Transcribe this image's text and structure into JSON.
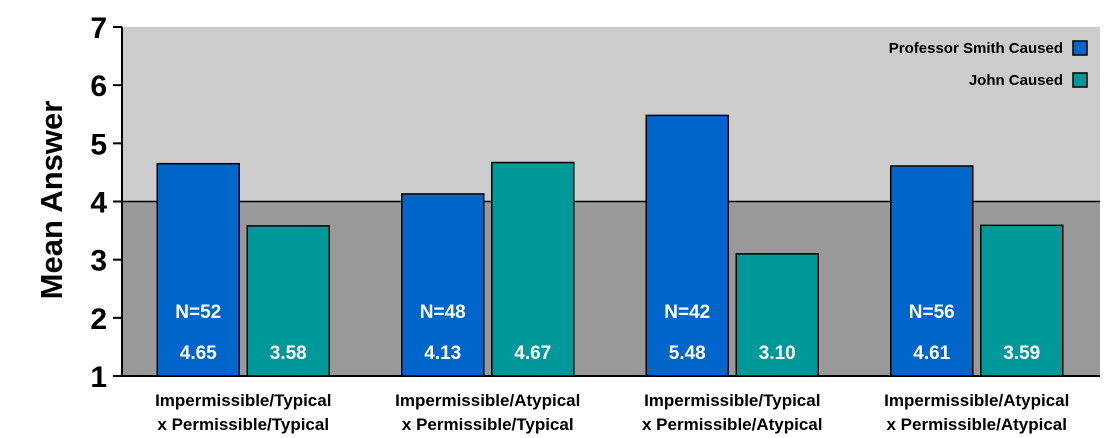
{
  "chart_data": {
    "type": "bar",
    "title": "",
    "xlabel": "",
    "ylabel": "Mean Answer",
    "ylim": [
      1,
      7
    ],
    "yticks": [
      1,
      2,
      3,
      4,
      5,
      6,
      7
    ],
    "grid": false,
    "legend_position": "top-right",
    "background": {
      "upper_color": "#cccccc",
      "lower_color": "#999999",
      "split_value": 4
    },
    "categories": [
      [
        "Impermissible/Typical",
        "x Permissible/Typical"
      ],
      [
        "Impermissible/Atypical",
        "x Permissible/Typical"
      ],
      [
        "Impermissible/Typical",
        "x Permissible/Atypical"
      ],
      [
        "Impermissible/Atypical",
        "x Permissible/Atypical"
      ]
    ],
    "sample_sizes": [
      "N=52",
      "N=48",
      "N=42",
      "N=56"
    ],
    "series": [
      {
        "name": "Professor Smith Caused",
        "color": "#0066cc",
        "values": [
          4.65,
          4.13,
          5.48,
          4.61
        ],
        "value_labels": [
          "4.65",
          "4.13",
          "5.48",
          "4.61"
        ]
      },
      {
        "name": "John Caused",
        "color": "#009999",
        "values": [
          3.58,
          4.67,
          3.1,
          3.59
        ],
        "value_labels": [
          "3.58",
          "4.67",
          "3.10",
          "3.59"
        ]
      }
    ]
  }
}
